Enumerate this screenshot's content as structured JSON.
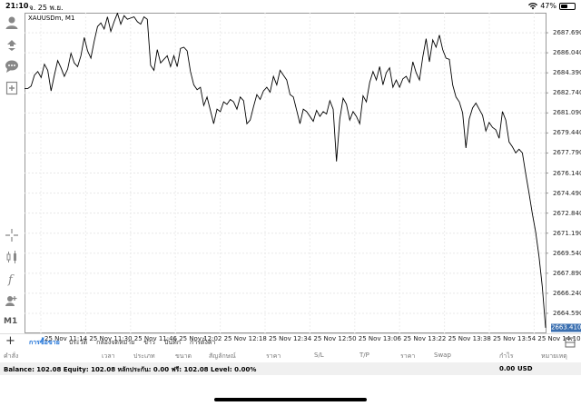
{
  "status": {
    "time": "21:10",
    "date": "จ. 25 พ.ย.",
    "battery": "47%",
    "battery_level": 0.47
  },
  "chart": {
    "symbol": "XAUUSDm, M1",
    "current_price": "2663.410",
    "y_ticks": [
      "2687.690",
      "2686.040",
      "2684.390",
      "2682.740",
      "2681.090",
      "2679.440",
      "2677.790",
      "2676.140",
      "2674.490",
      "2672.840",
      "2671.190",
      "2669.540",
      "2667.890",
      "2666.240",
      "2664.590"
    ],
    "x_ticks": [
      "25 Nov 11:14",
      "25 Nov 11:30",
      "25 Nov 11:46",
      "25 Nov 12:02",
      "25 Nov 12:18",
      "25 Nov 12:34",
      "25 Nov 12:50",
      "25 Nov 13:06",
      "25 Nov 13:22",
      "25 Nov 13:38",
      "25 Nov 13:54",
      "25 Nov 14:10"
    ]
  },
  "chart_data": {
    "type": "line",
    "ylim": [
      2662.94,
      2689.34
    ],
    "x_count": 190,
    "values": [
      2683.1,
      2683.1,
      2683.3,
      2684.2,
      2684.5,
      2684.0,
      2685.1,
      2684.6,
      2682.9,
      2684.2,
      2685.4,
      2684.8,
      2684.1,
      2684.7,
      2686.0,
      2685.2,
      2684.9,
      2685.8,
      2687.3,
      2686.2,
      2685.6,
      2687.0,
      2688.2,
      2688.5,
      2688.0,
      2689.0,
      2687.8,
      2688.6,
      2689.3,
      2688.4,
      2689.1,
      2688.8,
      2688.9,
      2689.0,
      2688.6,
      2688.4,
      2689.0,
      2688.8,
      2685.0,
      2684.6,
      2686.3,
      2685.2,
      2685.5,
      2685.8,
      2684.9,
      2685.8,
      2684.9,
      2686.4,
      2686.5,
      2686.2,
      2684.5,
      2683.4,
      2683.0,
      2683.2,
      2681.7,
      2682.4,
      2681.3,
      2680.2,
      2681.4,
      2681.2,
      2682.0,
      2681.8,
      2682.2,
      2682.0,
      2681.4,
      2682.4,
      2682.1,
      2680.2,
      2680.5,
      2681.6,
      2682.6,
      2682.2,
      2682.9,
      2683.2,
      2682.8,
      2684.1,
      2683.4,
      2684.6,
      2684.2,
      2683.8,
      2682.6,
      2682.4,
      2681.3,
      2680.2,
      2681.4,
      2681.2,
      2680.8,
      2680.4,
      2681.3,
      2680.8,
      2681.2,
      2681.0,
      2682.1,
      2681.4,
      2677.1,
      2680.6,
      2682.3,
      2681.8,
      2680.5,
      2681.2,
      2680.8,
      2680.2,
      2682.5,
      2682.0,
      2683.6,
      2684.5,
      2683.8,
      2684.9,
      2683.4,
      2684.4,
      2684.8,
      2683.2,
      2683.8,
      2683.2,
      2683.9,
      2684.1,
      2683.6,
      2685.3,
      2684.4,
      2683.8,
      2685.7,
      2687.2,
      2685.3,
      2687.1,
      2686.5,
      2687.5,
      2686.3,
      2685.6,
      2685.5,
      2683.4,
      2682.4,
      2682.0,
      2681.1,
      2678.2,
      2680.6,
      2681.5,
      2681.9,
      2681.4,
      2680.9,
      2679.6,
      2680.3,
      2679.9,
      2679.7,
      2679.0,
      2681.2,
      2680.5,
      2678.7,
      2678.3,
      2677.8,
      2678.1,
      2677.8,
      2676.1,
      2674.5,
      2672.8,
      2671.3,
      2669.3,
      2666.8,
      2663.4
    ]
  },
  "tabs": [
    "การซื้อขาย",
    "ประวัติ",
    "กล่องจดหมาย",
    "ข่าว",
    "บันทึก",
    "การตั้งค่า"
  ],
  "columns": [
    "คำสั่ง",
    "เวลา",
    "ประเภท",
    "ขนาด",
    "สัญลักษณ์",
    "ราคา",
    "S/L",
    "T/P",
    "ราคา",
    "Swap",
    "กำไร",
    "หมายเหตุ"
  ],
  "account": {
    "balance_line": "Balance: 102.08 Equity: 102.08 หลักประกัน: 0.00 ฟรี: 102.08 Level: 0.00%",
    "profit": "0.00",
    "currency": "USD"
  },
  "timeframe": "M1",
  "icons": [
    "account-icon",
    "trade-icon",
    "chat-icon",
    "new-order-icon",
    "crosshair-icon",
    "candles-icon",
    "indicator-icon",
    "objects-icon"
  ],
  "colors": {
    "accent": "#1a6fd6",
    "price_tag": "#3a6fb0"
  }
}
